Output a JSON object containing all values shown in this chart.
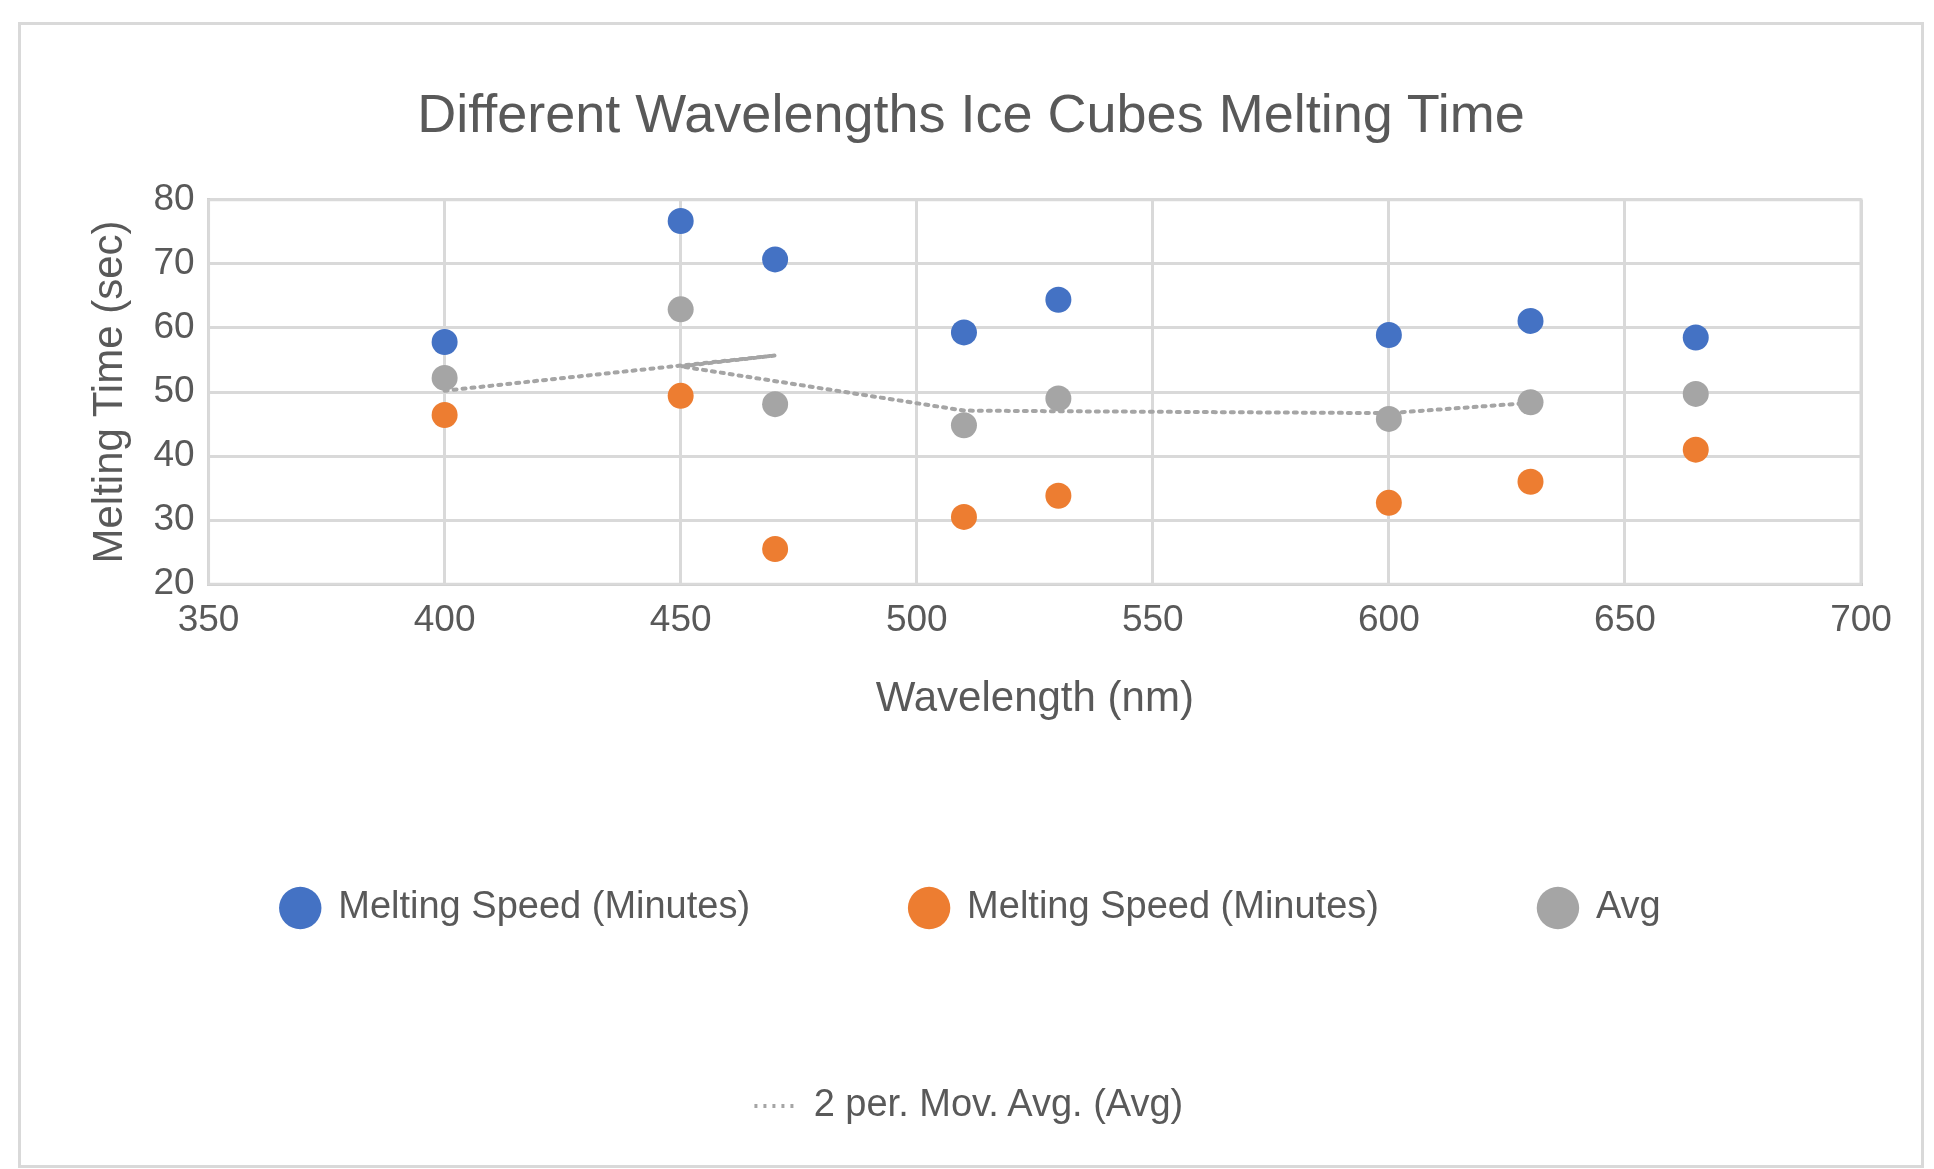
{
  "chart_data": {
    "type": "scatter",
    "title": "Different Wavelengths Ice Cubes Melting Time",
    "xlabel": "Wavelength (nm)",
    "ylabel": "Melting Time (sec)",
    "x": [
      400,
      450,
      470,
      510,
      530,
      600,
      630,
      665
    ],
    "series": [
      {
        "name": "Melting Speed (Minutes)",
        "color": "#4472c4",
        "values": [
          57.8,
          76.7,
          70.7,
          59.3,
          64.4,
          58.9,
          61.1,
          58.5
        ]
      },
      {
        "name": "Melting Speed (Minutes)",
        "color": "#ed7d31",
        "values": [
          46.4,
          49.4,
          25.5,
          30.5,
          33.8,
          32.7,
          36.0,
          41.0
        ]
      },
      {
        "name": "Avg",
        "color": "#a5a5a5",
        "values": [
          52.2,
          62.9,
          48.1,
          44.8,
          49.0,
          45.8,
          48.4,
          49.7
        ]
      },
      {
        "name": "2 per. Mov. Avg. (Avg)",
        "type": "line",
        "color": "#a5a5a5",
        "line_style": "dotted",
        "marker": "none",
        "x": [
          400,
          470,
          450,
          510,
          530,
          600,
          630
        ],
        "values": [
          50.2,
          55.7,
          54.0,
          47.1,
          47.0,
          46.7,
          48.3
        ]
      }
    ],
    "xlim": [
      350,
      700
    ],
    "xticks": [
      350,
      400,
      450,
      500,
      550,
      600,
      650,
      700
    ],
    "ylim": [
      20,
      80
    ],
    "yticks": [
      20,
      30,
      40,
      50,
      60,
      70,
      80
    ],
    "grid": true,
    "legend": "bottom",
    "marker": "circle"
  }
}
